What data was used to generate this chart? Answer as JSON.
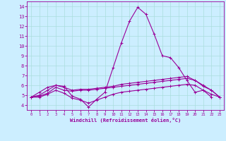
{
  "xlabel": "Windchill (Refroidissement éolien,°C)",
  "background_color": "#cceeff",
  "grid_color": "#aadddd",
  "line_color": "#990099",
  "xlim": [
    -0.5,
    23.5
  ],
  "ylim": [
    3.5,
    14.5
  ],
  "yticks": [
    4,
    5,
    6,
    7,
    8,
    9,
    10,
    11,
    12,
    13,
    14
  ],
  "xticks": [
    0,
    1,
    2,
    3,
    4,
    5,
    6,
    7,
    8,
    9,
    10,
    11,
    12,
    13,
    14,
    15,
    16,
    17,
    18,
    19,
    20,
    21,
    22,
    23
  ],
  "series": [
    {
      "x": [
        0,
        1,
        2,
        3,
        4,
        5,
        6,
        7,
        8,
        9,
        10,
        11,
        12,
        13,
        14,
        15,
        16,
        17,
        18,
        19,
        20,
        21,
        22
      ],
      "y": [
        4.8,
        5.3,
        5.8,
        6.0,
        5.9,
        4.9,
        4.6,
        3.8,
        4.6,
        5.3,
        7.8,
        10.3,
        12.5,
        13.9,
        13.2,
        11.2,
        9.0,
        8.8,
        7.8,
        6.5,
        5.3,
        5.5,
        4.8
      ]
    },
    {
      "x": [
        0,
        1,
        2,
        3,
        4,
        5,
        6,
        7,
        8,
        9,
        10,
        11,
        12,
        13,
        14,
        15,
        16,
        17,
        18,
        19,
        20,
        21,
        22,
        23
      ],
      "y": [
        4.8,
        4.8,
        5.1,
        5.5,
        5.2,
        4.7,
        4.5,
        4.2,
        4.5,
        4.8,
        5.1,
        5.3,
        5.4,
        5.5,
        5.6,
        5.7,
        5.8,
        5.9,
        6.0,
        6.1,
        6.0,
        5.5,
        5.1,
        4.8
      ]
    },
    {
      "x": [
        0,
        1,
        2,
        3,
        4,
        5,
        6,
        7,
        8,
        9,
        10,
        11,
        12,
        13,
        14,
        15,
        16,
        17,
        18,
        19,
        20,
        21,
        22,
        23
      ],
      "y": [
        4.8,
        4.9,
        5.2,
        5.8,
        5.5,
        5.4,
        5.5,
        5.5,
        5.6,
        5.7,
        5.8,
        5.9,
        6.0,
        6.1,
        6.2,
        6.3,
        6.4,
        6.5,
        6.6,
        6.7,
        6.5,
        5.9,
        5.5,
        4.8
      ]
    },
    {
      "x": [
        0,
        1,
        2,
        3,
        4,
        5,
        6,
        7,
        8,
        9,
        10,
        11,
        12,
        13,
        14,
        15,
        16,
        17,
        18,
        19,
        20,
        21,
        22,
        23
      ],
      "y": [
        4.8,
        5.0,
        5.5,
        6.0,
        5.8,
        5.5,
        5.6,
        5.6,
        5.7,
        5.8,
        5.9,
        6.1,
        6.2,
        6.3,
        6.4,
        6.5,
        6.6,
        6.7,
        6.8,
        6.9,
        6.5,
        6.0,
        5.5,
        4.8
      ]
    }
  ]
}
